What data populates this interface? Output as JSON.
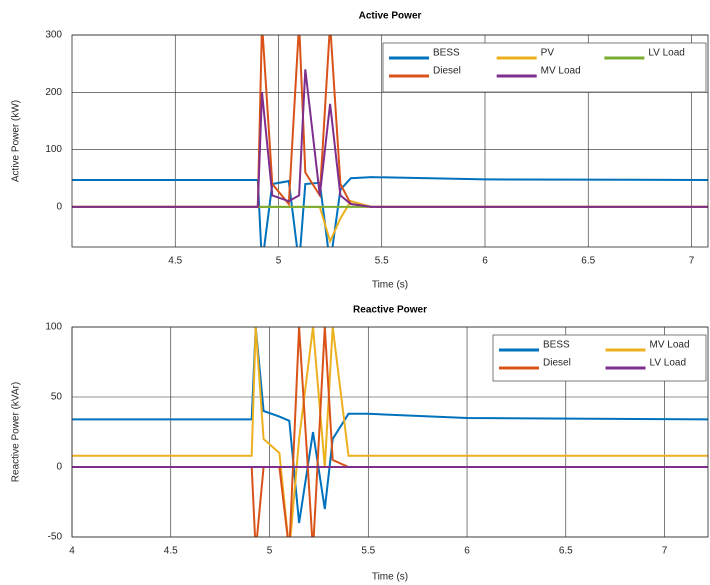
{
  "chart_data": [
    {
      "type": "line",
      "title": "Active Power",
      "xlabel": "Time (s)",
      "ylabel": "Active Power (kW)",
      "x": [
        4,
        4.9,
        4.92,
        4.97,
        5.05,
        5.1,
        5.13,
        5.2,
        5.25,
        5.3,
        5.35,
        5.45,
        6,
        7.08
      ],
      "series": [
        {
          "name": "BESS",
          "color": "#0072bd",
          "values": [
            47,
            47,
            -100,
            40,
            45,
            -100,
            40,
            42,
            -100,
            30,
            50,
            52,
            48,
            47
          ]
        },
        {
          "name": "PV",
          "color": "#edb120",
          "values": [
            0,
            0,
            0,
            0,
            0,
            0,
            0,
            0,
            -60,
            -20,
            10,
            0,
            0,
            0
          ]
        },
        {
          "name": "LV Load",
          "color": "#77ac30",
          "values": [
            0,
            0,
            0,
            0,
            0,
            0,
            0,
            0,
            0,
            0,
            0,
            0,
            0,
            0
          ]
        },
        {
          "name": "Diesel",
          "color": "#d95319",
          "values": [
            0,
            0,
            320,
            40,
            5,
            320,
            60,
            20,
            320,
            40,
            5,
            0,
            0,
            0
          ]
        },
        {
          "name": "MV Load",
          "color": "#7e2f8e",
          "values": [
            0,
            0,
            200,
            20,
            10,
            20,
            240,
            20,
            180,
            20,
            5,
            0,
            0,
            0
          ]
        }
      ],
      "xlim": [
        4,
        7.08
      ],
      "xticks": [
        4.5,
        5,
        5.5,
        6,
        6.5,
        7
      ],
      "ylim": [
        -70,
        300
      ],
      "yticks": [
        0,
        100,
        200,
        300
      ],
      "grid": true,
      "legend": "upper-right"
    },
    {
      "type": "line",
      "title": "Reactive Power",
      "xlabel": "Time (s)",
      "ylabel": "Reactive Power (kVAr)",
      "x": [
        4,
        4.91,
        4.93,
        4.97,
        5.05,
        5.1,
        5.15,
        5.22,
        5.28,
        5.32,
        5.4,
        5.5,
        6,
        7.22
      ],
      "series": [
        {
          "name": "BESS",
          "color": "#0072bd",
          "values": [
            34,
            34,
            100,
            40,
            36,
            33,
            -40,
            25,
            -30,
            20,
            38,
            38,
            35,
            34
          ]
        },
        {
          "name": "MV Load",
          "color": "#edb120",
          "values": [
            8,
            8,
            100,
            20,
            10,
            -60,
            20,
            100,
            0,
            100,
            8,
            8,
            8,
            8
          ]
        },
        {
          "name": "Diesel",
          "color": "#d95319",
          "values": [
            0,
            0,
            -60,
            0,
            0,
            -60,
            100,
            -60,
            100,
            5,
            0,
            0,
            0,
            0
          ]
        },
        {
          "name": "LV Load",
          "color": "#7e2f8e",
          "values": [
            0,
            0,
            0,
            0,
            0,
            0,
            0,
            0,
            0,
            0,
            0,
            0,
            0,
            0
          ]
        }
      ],
      "xlim": [
        4,
        7.22
      ],
      "xticks": [
        4,
        4.5,
        5,
        5.5,
        6,
        6.5,
        7
      ],
      "ylim": [
        -50,
        100
      ],
      "yticks": [
        -50,
        0,
        50,
        100
      ],
      "grid": true,
      "legend": "upper-right"
    }
  ]
}
